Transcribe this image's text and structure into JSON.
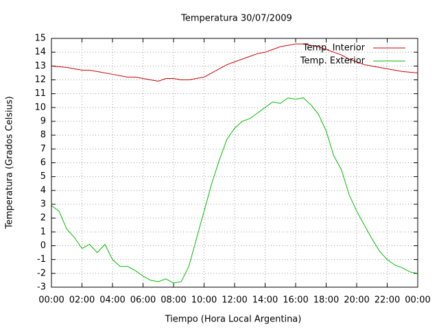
{
  "chart_data": {
    "type": "line",
    "title": "Temperatura 30/07/2009",
    "xlabel": "Tiempo (Hora Local Argentina)",
    "ylabel": "Temperatura (Grados Celsius)",
    "x": [
      0,
      0.5,
      1,
      1.5,
      2,
      2.5,
      3,
      3.5,
      4,
      4.5,
      5,
      5.5,
      6,
      6.5,
      7,
      7.5,
      8,
      8.5,
      9,
      9.5,
      10,
      10.5,
      11,
      11.5,
      12,
      12.5,
      13,
      13.5,
      14,
      14.5,
      15,
      15.5,
      16,
      16.5,
      17,
      17.5,
      18,
      18.5,
      19,
      19.5,
      20,
      20.5,
      21,
      21.5,
      22,
      22.5,
      23,
      23.5,
      24
    ],
    "series": [
      {
        "name": "Temp. Interior",
        "color": "#cc0000",
        "values": [
          13.0,
          12.95,
          12.9,
          12.8,
          12.7,
          12.7,
          12.6,
          12.5,
          12.4,
          12.3,
          12.2,
          12.2,
          12.1,
          12.0,
          11.9,
          12.1,
          12.1,
          12.0,
          12.0,
          12.1,
          12.2,
          12.5,
          12.8,
          13.1,
          13.3,
          13.5,
          13.7,
          13.9,
          14.0,
          14.2,
          14.4,
          14.5,
          14.6,
          14.6,
          14.5,
          14.4,
          14.2,
          14.0,
          13.8,
          13.5,
          13.3,
          13.1,
          13.0,
          12.9,
          12.8,
          12.7,
          12.6,
          12.55,
          12.5
        ]
      },
      {
        "name": "Temp. Exterior",
        "color": "#00bb00",
        "values": [
          2.9,
          2.5,
          1.2,
          0.6,
          -0.2,
          0.1,
          -0.5,
          0.1,
          -1.0,
          -1.5,
          -1.5,
          -1.8,
          -2.2,
          -2.5,
          -2.6,
          -2.4,
          -2.7,
          -2.6,
          -1.5,
          0.5,
          2.5,
          4.5,
          6.2,
          7.7,
          8.5,
          9.0,
          9.2,
          9.6,
          10.0,
          10.4,
          10.3,
          10.7,
          10.6,
          10.7,
          10.2,
          9.5,
          8.3,
          6.5,
          5.5,
          3.7,
          2.5,
          1.5,
          0.5,
          -0.4,
          -1.0,
          -1.4,
          -1.6,
          -1.9,
          -2.0
        ]
      }
    ],
    "xlim": [
      0,
      24
    ],
    "xticks": [
      {
        "value": 0,
        "label": "00:00"
      },
      {
        "value": 2,
        "label": "02:00"
      },
      {
        "value": 4,
        "label": "04:00"
      },
      {
        "value": 6,
        "label": "06:00"
      },
      {
        "value": 8,
        "label": "08:00"
      },
      {
        "value": 10,
        "label": "10:00"
      },
      {
        "value": 12,
        "label": "12:00"
      },
      {
        "value": 14,
        "label": "14:00"
      },
      {
        "value": 16,
        "label": "16:00"
      },
      {
        "value": 18,
        "label": "18:00"
      },
      {
        "value": 20,
        "label": "20:00"
      },
      {
        "value": 22,
        "label": "22:00"
      },
      {
        "value": 24,
        "label": "00:00"
      }
    ],
    "ylim": [
      -3,
      15
    ],
    "yticks": [
      -3,
      -2,
      -1,
      0,
      1,
      2,
      3,
      4,
      5,
      6,
      7,
      8,
      9,
      10,
      11,
      12,
      13,
      14,
      15
    ],
    "grid": true,
    "legend": "upper right"
  }
}
